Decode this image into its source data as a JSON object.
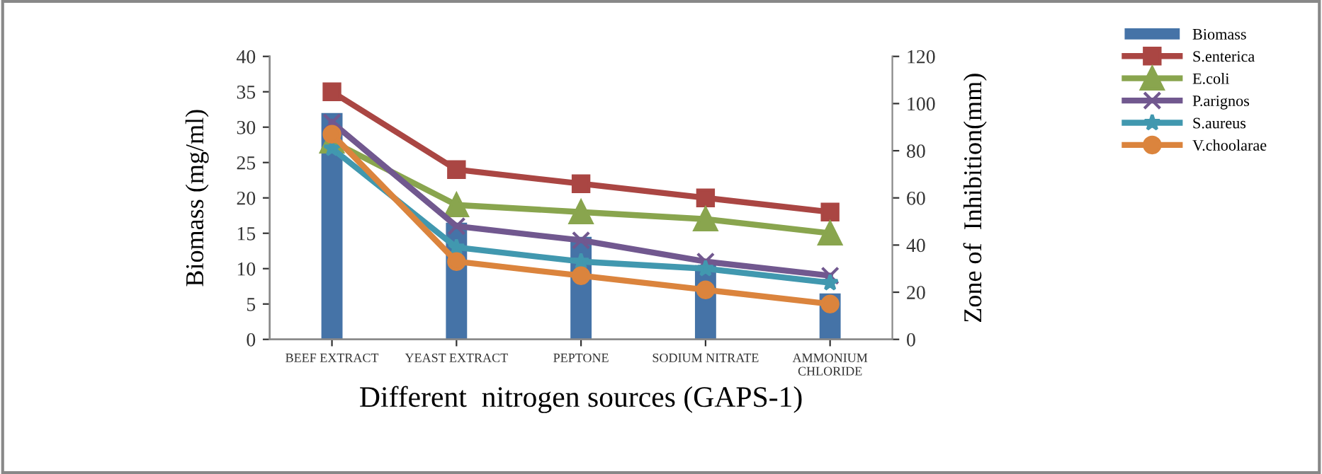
{
  "chart_data": {
    "type": "bar",
    "categories": [
      "BEEF EXTRACT",
      "YEAST EXTRACT",
      "PEPTONE",
      "SODIUM NITRATE",
      "AMMONIUM\nCHLORIDE"
    ],
    "xlabel": "Different  nitrogen sources (GAPS-1)",
    "ylabel": "Biomass (mg/ml)",
    "y2label": "Zone of  Inhibition(mm)",
    "ylim": [
      0,
      40
    ],
    "yticks": [
      0,
      5,
      10,
      15,
      20,
      25,
      30,
      35,
      40
    ],
    "y2lim": [
      0,
      120
    ],
    "y2ticks": [
      0,
      20,
      40,
      60,
      80,
      100,
      120
    ],
    "legend": "right",
    "grid": false,
    "series": [
      {
        "name": "Biomass",
        "color": "#4573a7",
        "values": [
          32,
          16.5,
          14.5,
          10.5,
          6.5
        ]
      },
      {
        "name": "S.enterica",
        "type": "line",
        "axis": "y2",
        "marker": "square",
        "color": "#aa4643",
        "values": [
          105,
          72,
          66,
          60,
          54
        ]
      },
      {
        "name": "E.coli",
        "type": "line",
        "axis": "y2",
        "marker": "triangle",
        "color": "#89a54e",
        "values": [
          84,
          57,
          54,
          51,
          45
        ]
      },
      {
        "name": "P.arignos",
        "type": "line",
        "axis": "y2",
        "marker": "cross",
        "color": "#71588f",
        "values": [
          92,
          48,
          42,
          33,
          27
        ]
      },
      {
        "name": "S.aureus",
        "type": "line",
        "axis": "y2",
        "marker": "star",
        "color": "#4198af",
        "values": [
          81,
          39,
          33,
          30,
          24
        ]
      },
      {
        "name": "V.choolarae",
        "type": "line",
        "axis": "y2",
        "marker": "circle",
        "color": "#db843d",
        "values": [
          87,
          33,
          27,
          21,
          15
        ]
      }
    ]
  }
}
